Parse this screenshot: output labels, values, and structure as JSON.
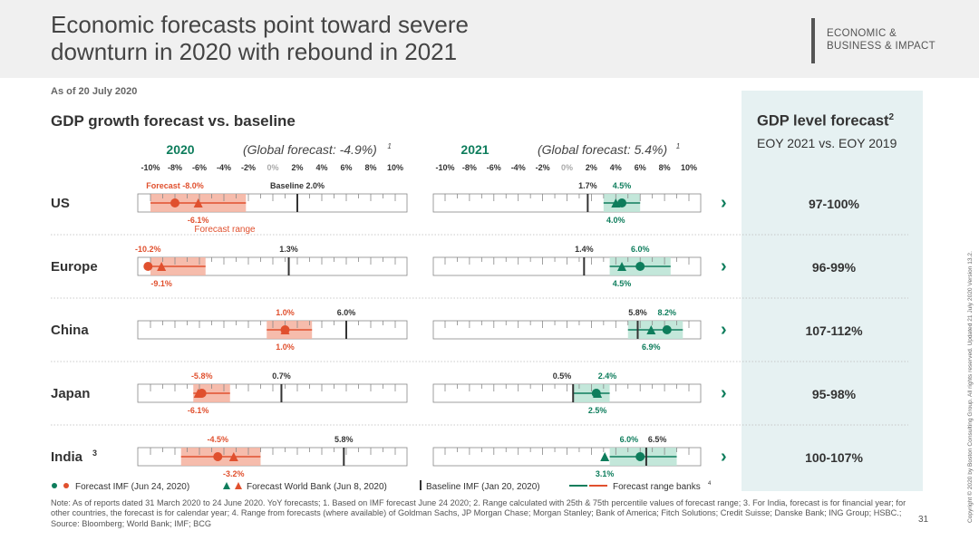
{
  "header": {
    "title_line1": "Economic forecasts point toward severe",
    "title_line2": "downturn in 2020 with rebound in 2021",
    "brand_line1": "ECONOMIC &",
    "brand_line2": "BUSINESS & IMPACT"
  },
  "as_of": "As of 20 July 2020",
  "section_title": "GDP growth forecast vs. baseline",
  "panel": {
    "title": "GDP level forecast",
    "title_sup": "2",
    "subtitle": "EOY 2021 vs. EOY 2019"
  },
  "colors": {
    "orange": "#e0502e",
    "orange_light": "#f4b09e",
    "green": "#0e7d5c",
    "green_light": "#b9e3d3",
    "axis": "#888888"
  },
  "chart_data": {
    "type": "range",
    "axis_ticks": [
      "-10%",
      "-8%",
      "-6%",
      "-4%",
      "-2%",
      "0%",
      "2%",
      "4%",
      "6%",
      "8%",
      "10%"
    ],
    "axis_range": [
      -10,
      10
    ],
    "years": [
      {
        "year": "2020",
        "global_label": "(Global forecast: -4.9%)",
        "global_sup": "1"
      },
      {
        "year": "2021",
        "global_label": "(Global forecast: 5.4%)",
        "global_sup": "1"
      }
    ],
    "rows": [
      {
        "country": "US",
        "country_sup": "",
        "level": "97-100%",
        "y2020": {
          "imf": -8.0,
          "wb": -6.1,
          "baseline": 2.0,
          "range": [
            -10.0,
            -2.2
          ],
          "labels": {
            "imf": "Forecast -8.0%",
            "wb": "-6.1%",
            "baseline": "Baseline 2.0%",
            "range": "Forecast range"
          }
        },
        "y2021": {
          "imf": 4.5,
          "wb": 4.0,
          "baseline": 1.7,
          "range": [
            3.0,
            6.0
          ],
          "labels": {
            "imf": "4.5%",
            "wb": "4.0%",
            "baseline": "1.7%"
          }
        }
      },
      {
        "country": "Europe",
        "country_sup": "",
        "level": "96-99%",
        "y2020": {
          "imf": -10.2,
          "wb": -9.1,
          "baseline": 1.3,
          "range": [
            -10.0,
            -5.5
          ],
          "labels": {
            "imf": "-10.2%",
            "wb": "-9.1%",
            "baseline": "1.3%"
          }
        },
        "y2021": {
          "imf": 6.0,
          "wb": 4.5,
          "baseline": 1.4,
          "range": [
            3.5,
            8.5
          ],
          "labels": {
            "imf": "6.0%",
            "wb": "4.5%",
            "baseline": "1.4%"
          }
        }
      },
      {
        "country": "China",
        "country_sup": "",
        "level": "107-112%",
        "y2020": {
          "imf": 1.0,
          "wb": 1.0,
          "baseline": 6.0,
          "range": [
            -0.5,
            3.2
          ],
          "labels": {
            "imf": "1.0%",
            "wb": "1.0%",
            "baseline": "6.0%"
          }
        },
        "y2021": {
          "imf": 8.2,
          "wb": 6.9,
          "baseline": 5.8,
          "range": [
            5.0,
            9.5
          ],
          "labels": {
            "imf": "8.2%",
            "wb": "6.9%",
            "baseline": "5.8%"
          }
        }
      },
      {
        "country": "Japan",
        "country_sup": "",
        "level": "95-98%",
        "y2020": {
          "imf": -5.8,
          "wb": -6.1,
          "baseline": 0.7,
          "range": [
            -6.5,
            -3.5
          ],
          "labels": {
            "imf": "-5.8%",
            "wb": "-6.1%",
            "baseline": "0.7%"
          }
        },
        "y2021": {
          "imf": 2.4,
          "wb": 2.5,
          "baseline": 0.5,
          "range": [
            0.5,
            3.5
          ],
          "labels": {
            "imf": "2.4%",
            "wb": "2.5%",
            "baseline": "0.5%"
          }
        }
      },
      {
        "country": "India",
        "country_sup": "3",
        "level": "100-107%",
        "y2020": {
          "imf": -4.5,
          "wb": -3.2,
          "baseline": 5.8,
          "range": [
            -7.5,
            -1.0
          ],
          "labels": {
            "imf": "-4.5%",
            "wb": "-3.2%",
            "baseline": "5.8%"
          }
        },
        "y2021": {
          "imf": 6.0,
          "wb": 3.1,
          "baseline": 6.5,
          "range": [
            3.5,
            9.0
          ],
          "labels": {
            "imf": "6.0%",
            "wb": "3.1%",
            "baseline": "6.5%"
          }
        }
      }
    ],
    "legend": [
      {
        "key": "imf",
        "label": "Forecast IMF (Jun 24, 2020)"
      },
      {
        "key": "wb",
        "label": "Forecast World Bank (Jun 8, 2020)"
      },
      {
        "key": "baseline",
        "label": "Baseline IMF (Jan 20, 2020)"
      },
      {
        "key": "range",
        "label": "Forecast range banks",
        "sup": "4"
      }
    ]
  },
  "note": "Note: As of reports dated 31 March 2020 to 24 June 2020. YoY forecasts; 1. Based on IMF forecast June 24 2020; 2. Range calculated with 25th & 75th percentile values of forecast range; 3. For India, forecast is for financial year; for other countries, the forecast is for calendar year; 4. Range from forecasts (where available) of Goldman Sachs, JP Morgan Chase; Morgan Stanley; Bank of America; Fitch Solutions; Credit Suisse; Danske Bank; ING Group; HSBC.; Source: Bloomberg; World Bank; IMF; BCG",
  "page_number": "31",
  "copyright": "Copyright © 2020 by Boston Consulting Group. All rights reserved. Updated 21 July 2020 Version 13.2."
}
